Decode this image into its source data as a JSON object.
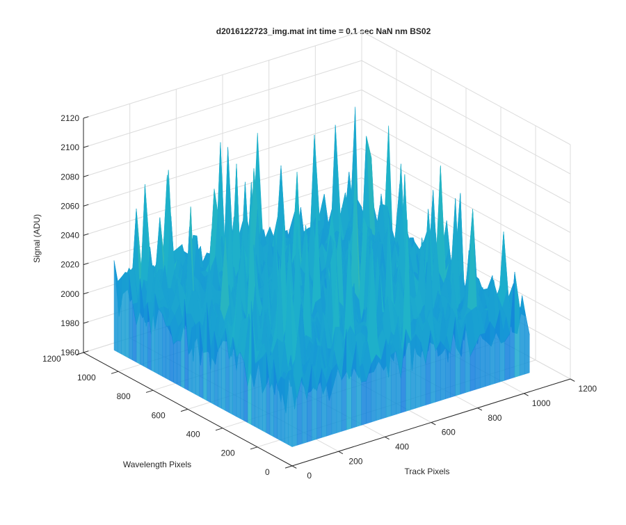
{
  "chart_data": {
    "type": "surface",
    "title": "d2016122723_img.mat int time = 0.1 sec  NaN nm BS02",
    "xlabel": "Track Pixels",
    "ylabel": "Wavelength Pixels",
    "zlabel": "Signal (ADU)",
    "xlim": [
      0,
      1200
    ],
    "ylim": [
      0,
      1200
    ],
    "zlim": [
      1960,
      2120
    ],
    "xticks": [
      "0",
      "200",
      "400",
      "600",
      "800",
      "1000",
      "1200"
    ],
    "yticks": [
      "0",
      "200",
      "400",
      "600",
      "800",
      "1000",
      "1200"
    ],
    "zticks": [
      "1960",
      "1980",
      "2000",
      "2020",
      "2040",
      "2060",
      "2080",
      "2100",
      "2120"
    ],
    "grid": true,
    "colormap": "parula",
    "data_extent": {
      "x": [
        0,
        1024
      ],
      "y": [
        0,
        1024
      ]
    },
    "signal_mean": 2015,
    "signal_range": [
      1965,
      2115
    ],
    "colors": {
      "low": "#0f6fe0",
      "mid": "#1fb3c9",
      "high": "#c9d63f",
      "axis": "#262626",
      "grid": "#dcdcdc"
    }
  }
}
